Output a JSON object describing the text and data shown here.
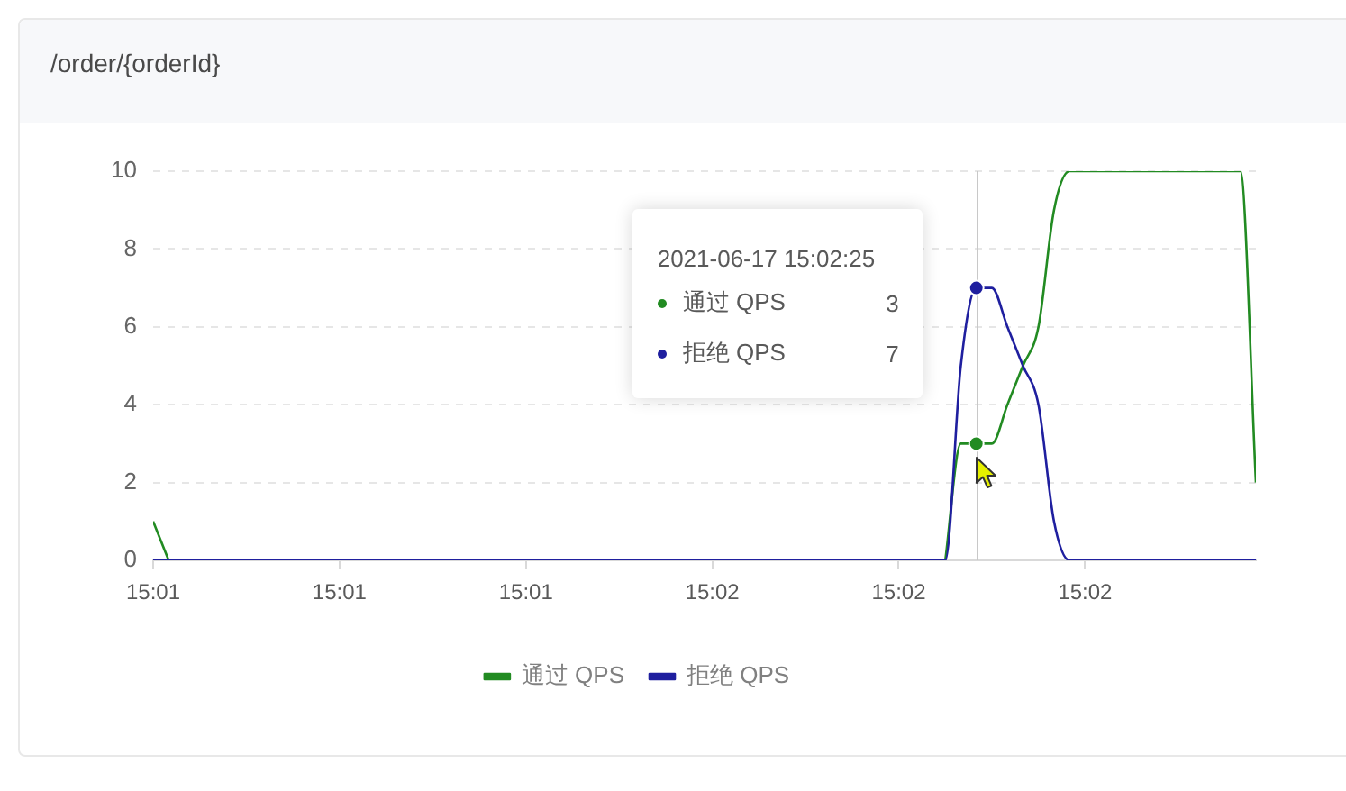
{
  "chart_data": {
    "type": "line",
    "title": "/order/{orderId}",
    "x": [
      "2021-06-17T15:01:32",
      "2021-06-17T15:01:33",
      "2021-06-17T15:01:34",
      "2021-06-17T15:01:35",
      "2021-06-17T15:01:36",
      "2021-06-17T15:01:37",
      "2021-06-17T15:01:38",
      "2021-06-17T15:01:39",
      "2021-06-17T15:01:40",
      "2021-06-17T15:01:41",
      "2021-06-17T15:01:42",
      "2021-06-17T15:01:43",
      "2021-06-17T15:01:44",
      "2021-06-17T15:01:45",
      "2021-06-17T15:01:46",
      "2021-06-17T15:01:47",
      "2021-06-17T15:01:48",
      "2021-06-17T15:01:49",
      "2021-06-17T15:01:50",
      "2021-06-17T15:01:51",
      "2021-06-17T15:01:52",
      "2021-06-17T15:01:53",
      "2021-06-17T15:01:54",
      "2021-06-17T15:01:55",
      "2021-06-17T15:01:56",
      "2021-06-17T15:01:57",
      "2021-06-17T15:01:58",
      "2021-06-17T15:01:59",
      "2021-06-17T15:02:00",
      "2021-06-17T15:02:01",
      "2021-06-17T15:02:02",
      "2021-06-17T15:02:03",
      "2021-06-17T15:02:04",
      "2021-06-17T15:02:05",
      "2021-06-17T15:02:06",
      "2021-06-17T15:02:07",
      "2021-06-17T15:02:08",
      "2021-06-17T15:02:09",
      "2021-06-17T15:02:10",
      "2021-06-17T15:02:11",
      "2021-06-17T15:02:12",
      "2021-06-17T15:02:13",
      "2021-06-17T15:02:14",
      "2021-06-17T15:02:15",
      "2021-06-17T15:02:16",
      "2021-06-17T15:02:17",
      "2021-06-17T15:02:18",
      "2021-06-17T15:02:19",
      "2021-06-17T15:02:20",
      "2021-06-17T15:02:21",
      "2021-06-17T15:02:22",
      "2021-06-17T15:02:23",
      "2021-06-17T15:02:24",
      "2021-06-17T15:02:25",
      "2021-06-17T15:02:26",
      "2021-06-17T15:02:27",
      "2021-06-17T15:02:28",
      "2021-06-17T15:02:29",
      "2021-06-17T15:02:30",
      "2021-06-17T15:02:31",
      "2021-06-17T15:02:32",
      "2021-06-17T15:02:33",
      "2021-06-17T15:02:34",
      "2021-06-17T15:02:35",
      "2021-06-17T15:02:36",
      "2021-06-17T15:02:37",
      "2021-06-17T15:02:38",
      "2021-06-17T15:02:39",
      "2021-06-17T15:02:40",
      "2021-06-17T15:02:41",
      "2021-06-17T15:02:42",
      "2021-06-17T15:02:43"
    ],
    "series": [
      {
        "name": "通过 QPS",
        "color": "#228b22",
        "values": [
          1,
          0,
          null,
          null,
          null,
          null,
          null,
          null,
          null,
          null,
          null,
          null,
          null,
          null,
          null,
          null,
          null,
          null,
          null,
          null,
          null,
          null,
          null,
          null,
          null,
          null,
          null,
          null,
          null,
          null,
          null,
          null,
          null,
          null,
          null,
          null,
          null,
          null,
          null,
          null,
          null,
          null,
          null,
          null,
          null,
          null,
          null,
          null,
          null,
          null,
          null,
          0,
          3,
          3,
          3,
          4,
          5,
          6,
          9,
          10,
          10,
          10,
          10,
          10,
          10,
          10,
          10,
          10,
          10,
          10,
          10,
          2
        ]
      },
      {
        "name": "拒绝 QPS",
        "color": "#1f1f9f",
        "values": [
          0,
          0,
          0,
          0,
          0,
          0,
          0,
          0,
          0,
          0,
          0,
          0,
          0,
          0,
          0,
          0,
          0,
          0,
          0,
          0,
          0,
          0,
          0,
          0,
          0,
          0,
          0,
          0,
          0,
          0,
          0,
          0,
          0,
          0,
          0,
          0,
          0,
          0,
          0,
          0,
          0,
          0,
          0,
          0,
          0,
          0,
          0,
          0,
          0,
          0,
          0,
          0,
          5,
          7,
          7,
          6,
          5,
          4,
          1,
          0,
          0,
          0,
          0,
          0,
          0,
          0,
          0,
          0,
          0,
          0,
          0,
          0
        ]
      }
    ],
    "xlim": [
      "2021-06-17T15:01:32",
      "2021-06-17T15:02:43"
    ],
    "xticks": [
      {
        "value": "2021-06-17T15:01:32",
        "label": "15:01"
      },
      {
        "value": "2021-06-17T15:01:44",
        "label": "15:01"
      },
      {
        "value": "2021-06-17T15:01:56",
        "label": "15:01"
      },
      {
        "value": "2021-06-17T15:02:08",
        "label": "15:02"
      },
      {
        "value": "2021-06-17T15:02:20",
        "label": "15:02"
      },
      {
        "value": "2021-06-17T15:02:32",
        "label": "15:02"
      }
    ],
    "ylim": [
      0,
      10
    ],
    "yticks": [
      0,
      2,
      4,
      6,
      8,
      10
    ],
    "grid": "y",
    "legend": "bottom",
    "ref_lines": [
      {
        "axis": "x",
        "value": "2021-06-17T15:02:25",
        "color": "#c8c8c8"
      }
    ],
    "annotations": [
      "2021-06-17 15:02:25",
      "通过 QPS",
      "3",
      "拒绝 QPS",
      "7"
    ]
  }
}
